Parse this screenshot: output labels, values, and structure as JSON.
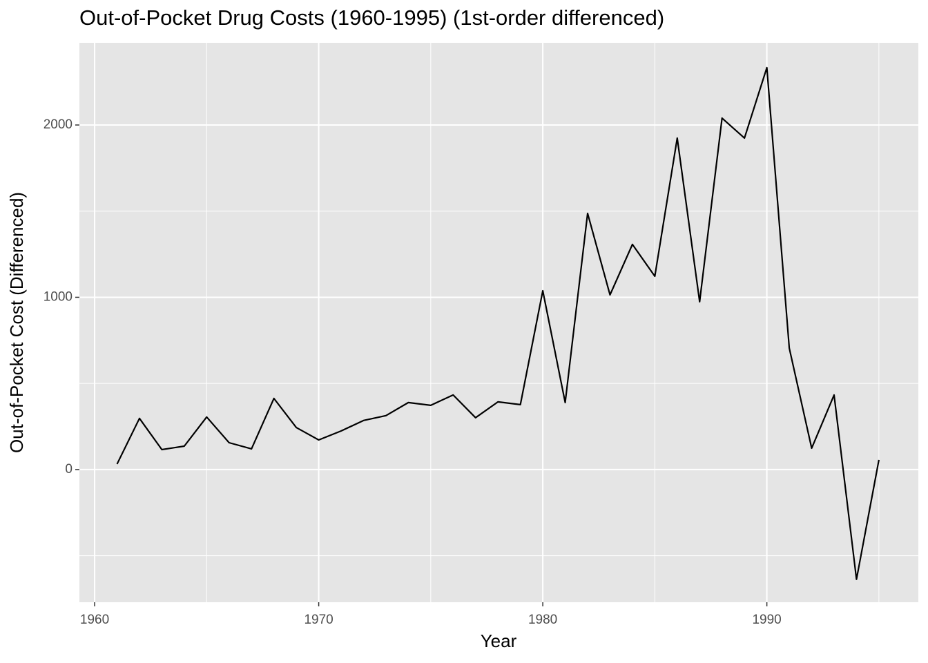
{
  "chart_data": {
    "type": "line",
    "title": "Out-of-Pocket Drug Costs (1960-1995) (1st-order differenced)",
    "x_label": "Year",
    "y_label": "Out-of-Pocket Cost (Differenced)",
    "x": [
      1961,
      1962,
      1963,
      1964,
      1965,
      1966,
      1967,
      1968,
      1969,
      1970,
      1971,
      1972,
      1973,
      1974,
      1975,
      1976,
      1977,
      1978,
      1979,
      1980,
      1981,
      1982,
      1983,
      1984,
      1985,
      1986,
      1987,
      1988,
      1989,
      1990,
      1991,
      1992,
      1993,
      1994,
      1995
    ],
    "series": [
      {
        "color": "#000000",
        "values": [
          32,
          297,
          116,
          136,
          305,
          156,
          120,
          413,
          244,
          172,
          224,
          285,
          313,
          389,
          373,
          433,
          301,
          393,
          377,
          1038,
          389,
          1487,
          1014,
          1307,
          1122,
          1924,
          974,
          2040,
          1924,
          2333,
          705,
          124,
          433,
          -637,
          56
        ]
      }
    ],
    "xlim": [
      1959.32,
      1996.76
    ],
    "ylim": [
      -770,
      2477
    ],
    "xticks": [
      1960,
      1970,
      1980,
      1990
    ],
    "yticks": [
      0,
      1000,
      2000
    ],
    "x_minor_ticks": [
      1965,
      1975,
      1985,
      1995
    ],
    "y_minor_ticks": [
      -500,
      500,
      1500
    ],
    "grid": true
  }
}
